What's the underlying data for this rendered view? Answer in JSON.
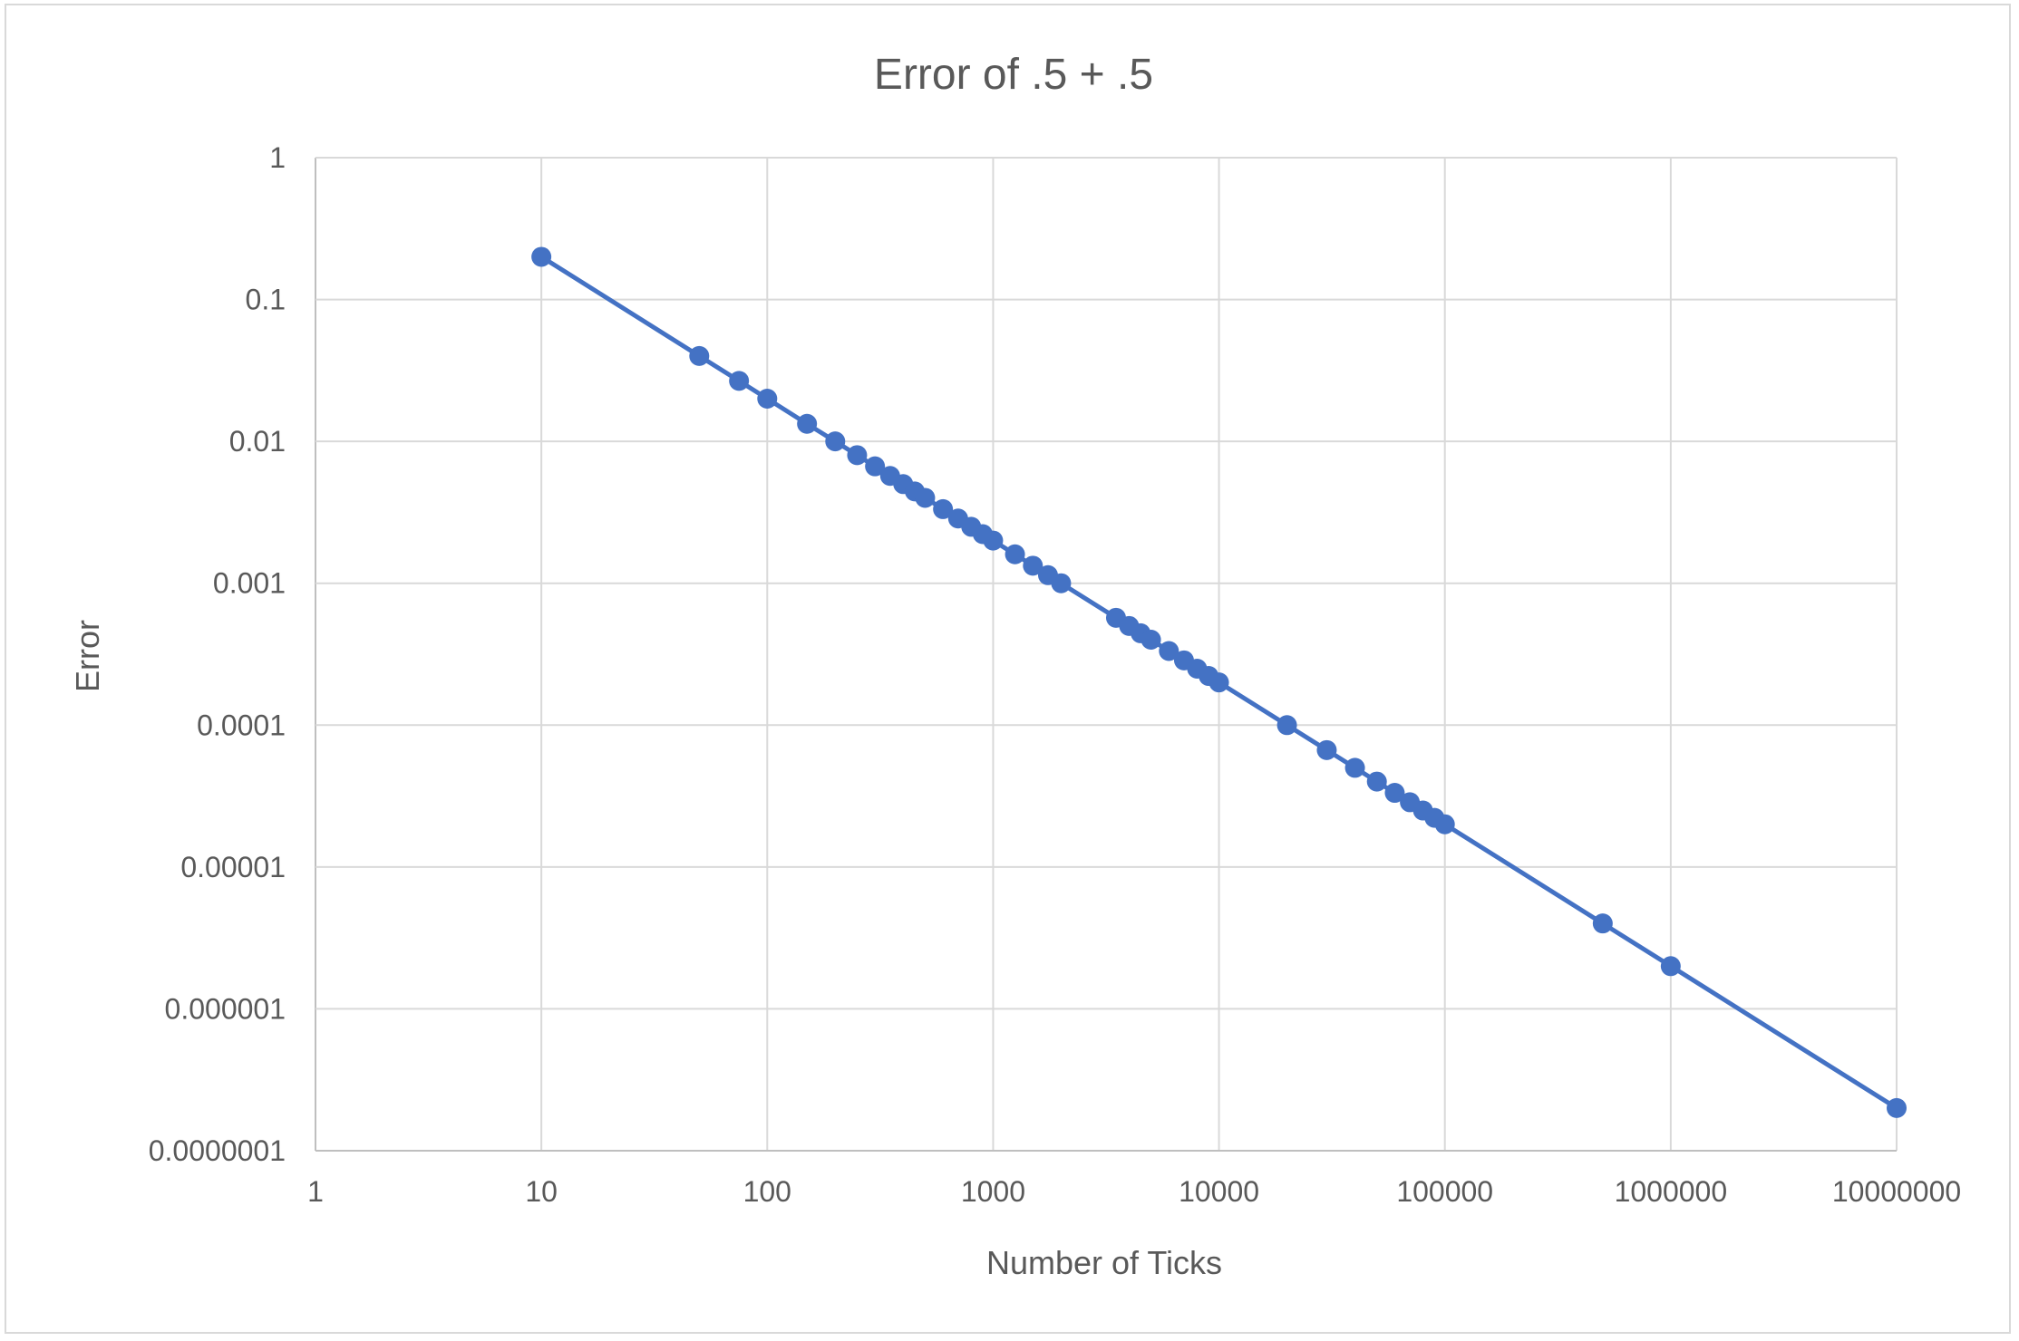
{
  "chart_data": {
    "type": "line",
    "title": "Error of .5 + .5",
    "xlabel": "Number of Ticks",
    "ylabel": "Error",
    "x_scale": "log",
    "y_scale": "log",
    "xlim": [
      1,
      10000000
    ],
    "ylim": [
      1e-07,
      1
    ],
    "grid": true,
    "markers": true,
    "series_color": "#4472c4",
    "x_tick_labels": [
      "1",
      "10",
      "100",
      "1000",
      "10000",
      "100000",
      "1000000",
      "10000000"
    ],
    "y_tick_labels": [
      "1",
      "0.1",
      "0.01",
      "0.001",
      "0.0001",
      "0.00001",
      "0.000001",
      "0.0000001"
    ],
    "x": [
      10,
      50,
      75,
      100,
      150,
      200,
      250,
      300,
      350,
      400,
      450,
      500,
      600,
      700,
      800,
      900,
      1000,
      1250,
      1500,
      1750,
      2000,
      3500,
      4000,
      4500,
      5000,
      6000,
      7000,
      8000,
      9000,
      10000,
      20000,
      30000,
      40000,
      50000,
      60000,
      70000,
      80000,
      90000,
      100000,
      500000,
      1000000,
      10000000
    ],
    "series": [
      {
        "values": [
          0.2,
          0.04,
          0.0267,
          0.02,
          0.0133,
          0.01,
          0.008,
          0.00667,
          0.00571,
          0.005,
          0.00444,
          0.004,
          0.00333,
          0.00286,
          0.0025,
          0.00222,
          0.002,
          0.0016,
          0.00133,
          0.00114,
          0.001,
          0.000571,
          0.0005,
          0.000444,
          0.0004,
          0.000333,
          0.000286,
          0.00025,
          0.000222,
          0.0002,
          0.0001,
          6.67e-05,
          5e-05,
          4e-05,
          3.33e-05,
          2.86e-05,
          2.5e-05,
          2.22e-05,
          2e-05,
          4e-06,
          2e-06,
          2e-07
        ]
      }
    ]
  }
}
